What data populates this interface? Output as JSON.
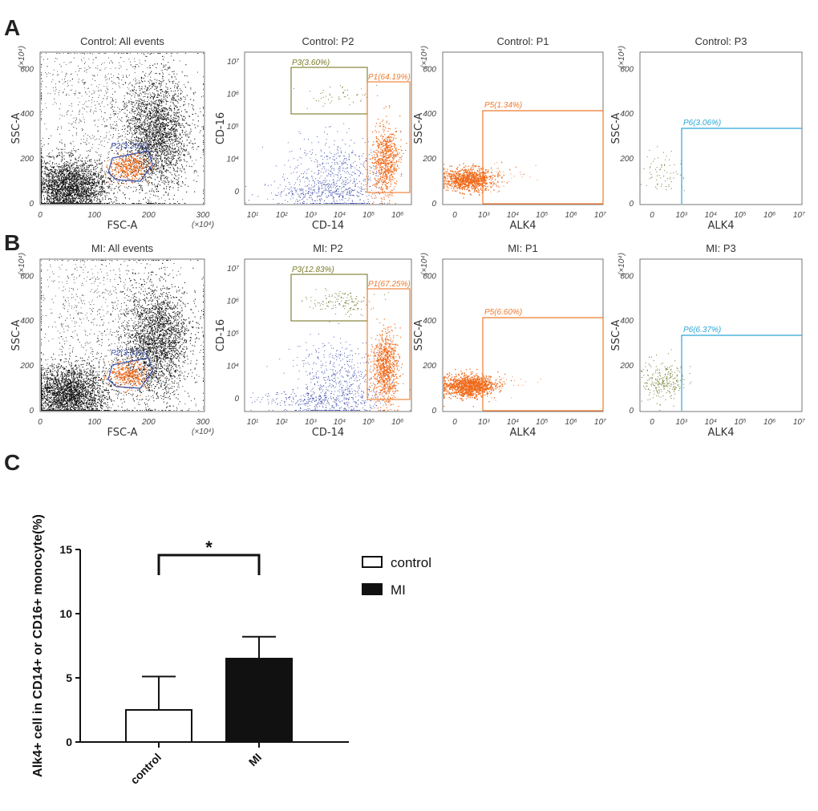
{
  "panel_labels": [
    "A",
    "B",
    "C"
  ],
  "flow_rows": [
    {
      "group": "Control",
      "panels": [
        {
          "title": "Control: All events",
          "xlabel": "FSC-A",
          "ylabel": "SSC-A",
          "gates": [
            {
              "label": "P2(3.26%)"
            }
          ]
        },
        {
          "title": "Control: P2",
          "xlabel": "CD-14",
          "ylabel": "CD-16",
          "gates": [
            {
              "label": "P3(3.60%)"
            },
            {
              "label": "P1(64.19%)"
            }
          ]
        },
        {
          "title": "Control: P1",
          "xlabel": "ALK4",
          "ylabel": "SSC-A",
          "gates": [
            {
              "label": "P5(1.34%)"
            }
          ]
        },
        {
          "title": "Control: P3",
          "xlabel": "ALK4",
          "ylabel": "SSC-A",
          "gates": [
            {
              "label": "P6(3.06%)"
            }
          ]
        }
      ]
    },
    {
      "group": "MI",
      "panels": [
        {
          "title": "MI: All events",
          "xlabel": "FSC-A",
          "ylabel": "SSC-A",
          "gates": [
            {
              "label": "P2(3.81%)"
            }
          ]
        },
        {
          "title": "MI: P2",
          "xlabel": "CD-14",
          "ylabel": "CD-16",
          "gates": [
            {
              "label": "P3(12.83%)"
            },
            {
              "label": "P1(67.25%)"
            }
          ]
        },
        {
          "title": "MI: P1",
          "xlabel": "ALK4",
          "ylabel": "SSC-A",
          "gates": [
            {
              "label": "P5(6.60%)"
            }
          ]
        },
        {
          "title": "MI: P3",
          "xlabel": "ALK4",
          "ylabel": "SSC-A",
          "gates": [
            {
              "label": "P6(6.37%)"
            }
          ]
        }
      ]
    }
  ],
  "axes_ticks": {
    "scatter_x": [
      "0",
      "100",
      "200",
      "300"
    ],
    "scatter_y": [
      "0",
      "200",
      "400",
      "600"
    ],
    "multiplier": "(×10⁴)",
    "log_x": [
      "10¹",
      "10²",
      "10³",
      "10⁴",
      "10⁵",
      "10⁶"
    ],
    "log_y": [
      "0",
      "10⁴",
      "10⁵",
      "10⁶",
      "10⁷"
    ],
    "alk4_x": [
      "0",
      "10³",
      "10⁴",
      "10⁵",
      "10⁶",
      "10⁷"
    ]
  },
  "chart_data": {
    "type": "bar",
    "title": "",
    "categories": [
      "control",
      "MI"
    ],
    "values": [
      2.5,
      6.5
    ],
    "error_bars": [
      2.6,
      1.7
    ],
    "bar_fills": [
      "open",
      "filled"
    ],
    "ylabel": "Alk4+ cell in CD14+ or CD16+ monocyte(%)",
    "xlabel": "",
    "ylim": [
      0,
      15
    ],
    "yticks": [
      "0",
      "5",
      "10",
      "15"
    ],
    "legend": [
      "control",
      "MI"
    ],
    "significance": "*"
  },
  "colors": {
    "gate_blue": "#3b50a8",
    "gate_orange": "#ef7a2c",
    "gate_olive": "#7a7a2a",
    "gate_cyan": "#2aa7d8",
    "event_black": "#111111",
    "cd14_dots": "#ef6a1a",
    "cd16_dots": "#6d7a2b",
    "nonmono_dots": "#2a3aa0"
  }
}
